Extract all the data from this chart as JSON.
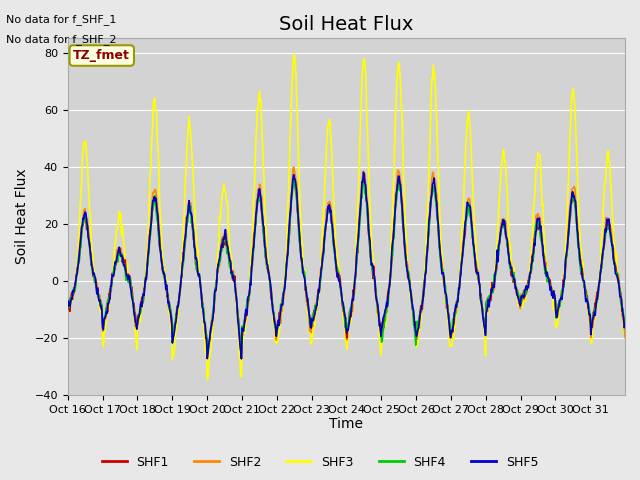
{
  "title": "Soil Heat Flux",
  "ylabel": "Soil Heat Flux",
  "xlabel": "Time",
  "ylim": [
    -40,
    85
  ],
  "yticks": [
    -40,
    -20,
    0,
    20,
    40,
    60,
    80
  ],
  "x_tick_labels": [
    "Oct 16",
    "Oct 17",
    "Oct 18",
    "Oct 19",
    "Oct 20",
    "Oct 21",
    "Oct 22",
    "Oct 23",
    "Oct 24",
    "Oct 25",
    "Oct 26",
    "Oct 27",
    "Oct 28",
    "Oct 29",
    "Oct 30",
    "Oct 31"
  ],
  "series_colors": {
    "SHF1": "#cc0000",
    "SHF2": "#ff8800",
    "SHF3": "#ffff00",
    "SHF4": "#00cc00",
    "SHF5": "#0000cc"
  },
  "legend_entries": [
    "SHF1",
    "SHF2",
    "SHF3",
    "SHF4",
    "SHF5"
  ],
  "no_data_text": [
    "No data for f_SHF_1",
    "No data for f_SHF_2"
  ],
  "tz_label": "TZ_fmet",
  "bg_color": "#e8e8e8",
  "plot_bg_color": "#d3d3d3",
  "grid_color": "#ffffff",
  "title_fontsize": 14,
  "axis_fontsize": 10,
  "tick_fontsize": 8,
  "day_peaks_shf3": [
    50,
    22,
    63,
    55,
    33,
    67,
    78,
    56,
    78,
    77,
    75,
    58,
    45,
    45,
    67,
    45
  ],
  "night_shf3": [
    -12,
    -22,
    -17,
    -28,
    -35,
    -23,
    -22,
    -20,
    -23,
    -22,
    -23,
    -23,
    -11,
    -9,
    -16,
    -21
  ],
  "shf2_scale": 0.5,
  "shf1_scale": 0.45,
  "shf5_scale": 0.47,
  "shf4_scale": 0.44,
  "night_shf2": [
    -10,
    -18,
    -15,
    -22,
    -28,
    -20,
    -18,
    -16,
    -20,
    -18,
    -20,
    -20,
    -9,
    -7,
    -13,
    -18
  ],
  "night_shf1": [
    -10,
    -16,
    -14,
    -20,
    -26,
    -18,
    -16,
    -15,
    -18,
    -17,
    -18,
    -18,
    -8,
    -7,
    -12,
    -16
  ],
  "night_shf5": [
    -11,
    -17,
    -14,
    -21,
    -27,
    -19,
    -17,
    -15,
    -19,
    -17,
    -19,
    -19,
    -9,
    -7,
    -13,
    -17
  ],
  "night_shf4": [
    -10,
    -16,
    -14,
    -20,
    -26,
    -18,
    -16,
    -15,
    -18,
    -21,
    -18,
    -18,
    -8,
    -7,
    -12,
    -16
  ]
}
